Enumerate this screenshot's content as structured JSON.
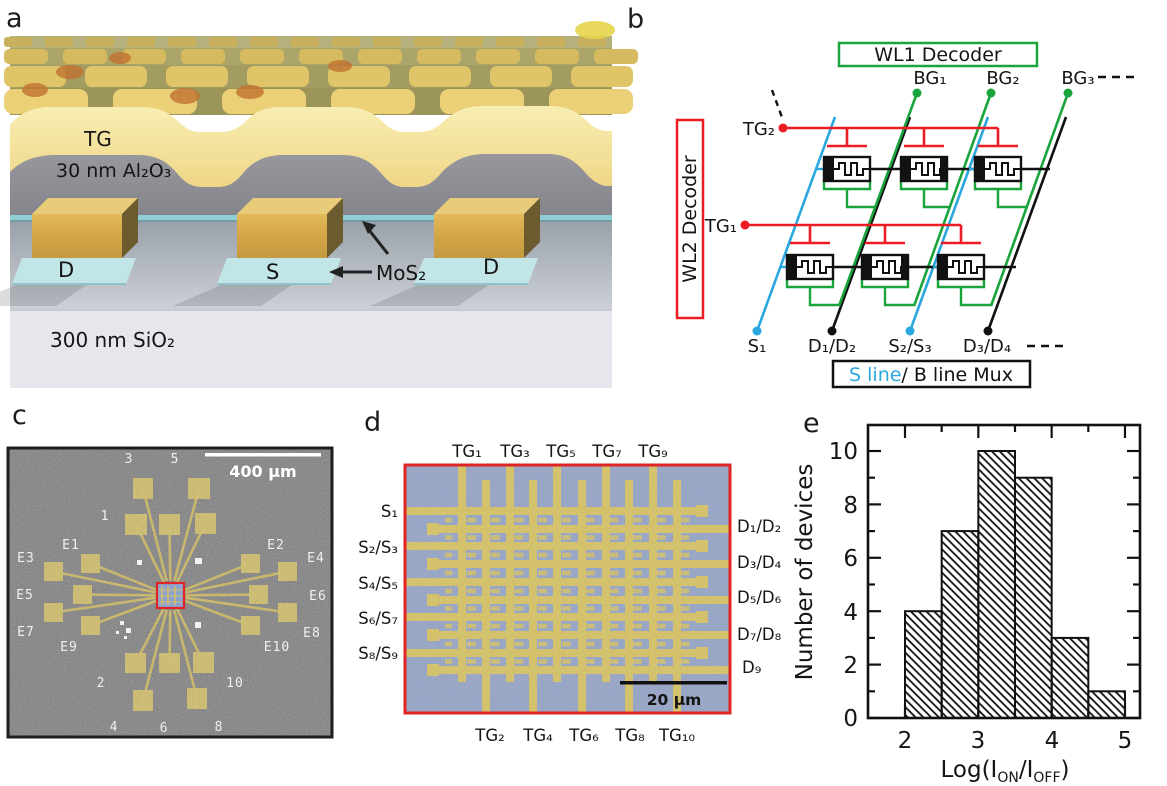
{
  "figure": {
    "panel_letters": {
      "a": "a",
      "b": "b",
      "c": "c",
      "d": "d",
      "e": "e"
    }
  },
  "panel_a": {
    "tg": "TG",
    "oxide": "30 nm Al₂O₃",
    "drain_left": "D",
    "source": "S",
    "mos2": "MoS₂",
    "drain_right": "D",
    "substrate": "300 nm SiO₂"
  },
  "panel_b": {
    "wl1_decoder": "WL1 Decoder",
    "wl2_decoder": "WL2 Decoder",
    "bg_labels": [
      "BG₁",
      "BG₂",
      "BG₃"
    ],
    "tg_labels": [
      "TG₂",
      "TG₁"
    ],
    "bottom_labels": [
      "S₁",
      "D₁/D₂",
      "S₂/S₃",
      "D₃/D₄"
    ],
    "mux_s": "S line",
    "mux_rest": "/ B line Mux"
  },
  "panel_c": {
    "scale_bar": "400 μm",
    "annotations": {
      "n3": "3",
      "n5": "5",
      "n1": "1",
      "n2": "2",
      "n10": "10",
      "n4": "4",
      "n6": "6",
      "n8": "8",
      "e1": "E1",
      "e2": "E2",
      "e3": "E3",
      "e4": "E4",
      "e5": "E5",
      "e6": "E6",
      "e7": "E7",
      "e8": "E8",
      "e9": "E9",
      "e10": "E10"
    }
  },
  "panel_d": {
    "scale_bar": "20 μm",
    "top_labels": [
      "TG₁",
      "TG₃",
      "TG₅",
      "TG₇",
      "TG₉"
    ],
    "bottom_labels": [
      "TG₂",
      "TG₄",
      "TG₆",
      "TG₈",
      "TG₁₀"
    ],
    "left_labels": [
      "S₁",
      "S₂/S₃",
      "S₄/S₅",
      "S₆/S₇",
      "S₈/S₉"
    ],
    "right_labels": [
      "D₁/D₂",
      "D₃/D₄",
      "D₅/D₆",
      "D₇/D₈",
      "D₉"
    ]
  },
  "chart_data": {
    "type": "bar",
    "ylabel": "Number of devices",
    "xlabel_parts": {
      "p1": "Log(I",
      "sub1": "ON",
      "p2": "/I",
      "sub2": "OFF",
      "p3": ")"
    },
    "bin_edges": [
      2,
      2.5,
      3,
      3.5,
      4,
      4.5,
      5
    ],
    "values": [
      4,
      7,
      10,
      9,
      3,
      1
    ],
    "xticks": [
      "2",
      "3",
      "4",
      "5"
    ],
    "yticks": [
      "0",
      "2",
      "4",
      "6",
      "8",
      "10"
    ],
    "xlim": [
      1.5,
      5.2
    ],
    "ylim": [
      0,
      11
    ],
    "grid": false,
    "hatch": "diagonal-backslash",
    "bar_fill": "#ffffff",
    "hatch_color": "#111111"
  },
  "colors": {
    "schematic_green": "#1aa43c",
    "schematic_red": "#ec1c24",
    "schematic_blue": "#2ba7e0",
    "gold": "#d6c05e",
    "sem_gray": "#7b7b7b",
    "array_blue": "#93a3c8",
    "border_red": "#e02424"
  }
}
